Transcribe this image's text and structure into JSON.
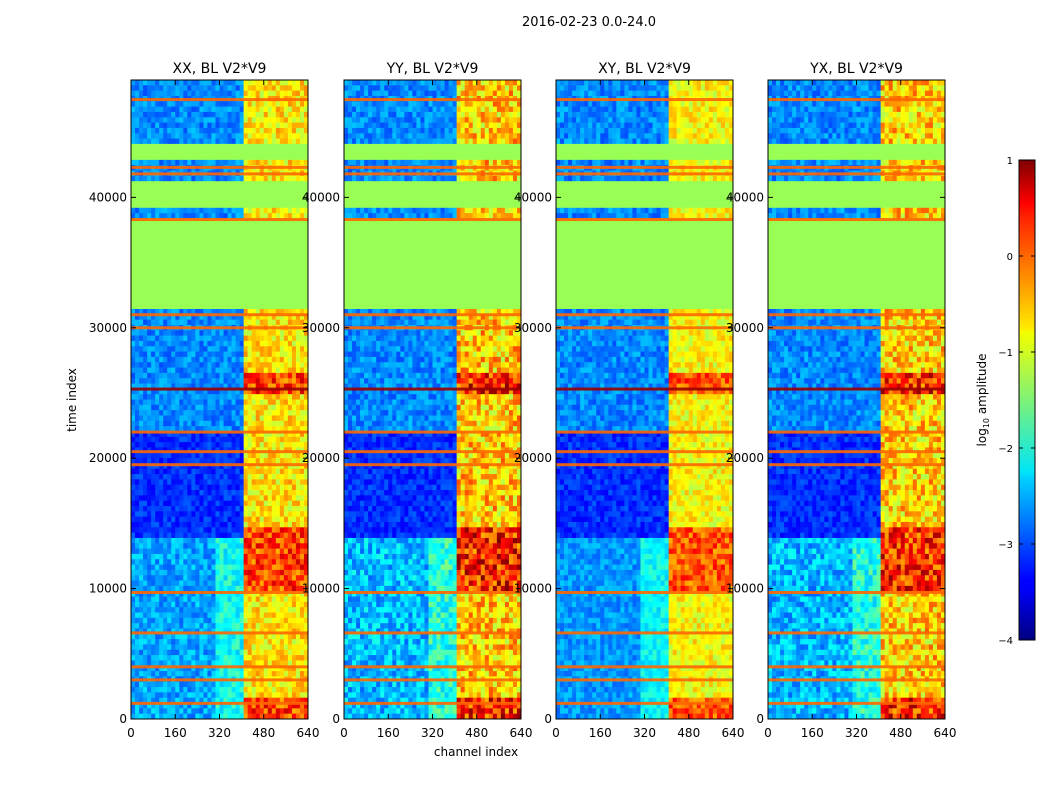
{
  "figure": {
    "suptitle": "2016-02-23 0.0-24.0"
  },
  "colors": {
    "flag": "#99ff55",
    "orange": "#ff6600",
    "darkred": "#990000",
    "background": "#ffffff"
  },
  "chart_data": {
    "type": "heatmap",
    "title": "2016-02-23 0.0-24.0",
    "xlabel": "channel index",
    "ylabel": "time index",
    "xlim": [
      0,
      640
    ],
    "ylim": [
      0,
      49000
    ],
    "xticks": [
      0,
      160,
      320,
      480,
      640
    ],
    "yticks": [
      0,
      10000,
      20000,
      30000,
      40000
    ],
    "panels": [
      {
        "title": "XX, BL V2*V9",
        "intensity": 0.75
      },
      {
        "title": "YY, BL V2*V9",
        "intensity": 1.0
      },
      {
        "title": "XY, BL V2*V9",
        "intensity": 0.6
      },
      {
        "title": "YX, BL V2*V9",
        "intensity": 0.95
      }
    ],
    "flagged_time_ranges": [
      [
        31500,
        38200
      ],
      [
        39000,
        41200
      ],
      [
        42800,
        44000
      ]
    ],
    "flagged_channel_ranges": [],
    "rfi_channel_range": [
      410,
      640
    ],
    "high_amplitude_time_ranges": [
      [
        25000,
        26500
      ],
      [
        10000,
        14500
      ],
      [
        0,
        1500
      ]
    ],
    "horizontal_rfi_lines": [
      19500,
      20500,
      22000,
      25300,
      30000,
      31000,
      38300,
      41800,
      42300,
      9700,
      6600,
      4000,
      3000,
      1200,
      47500
    ],
    "colorbar": {
      "label": "log10 amplitude",
      "label_prefix": "log",
      "label_sub": "10",
      "label_suffix": " amplitude",
      "vmin": -4,
      "vmax": 1,
      "ticks": [
        1,
        0,
        -1,
        -2,
        -3,
        -4
      ],
      "colormap": "jet"
    }
  }
}
